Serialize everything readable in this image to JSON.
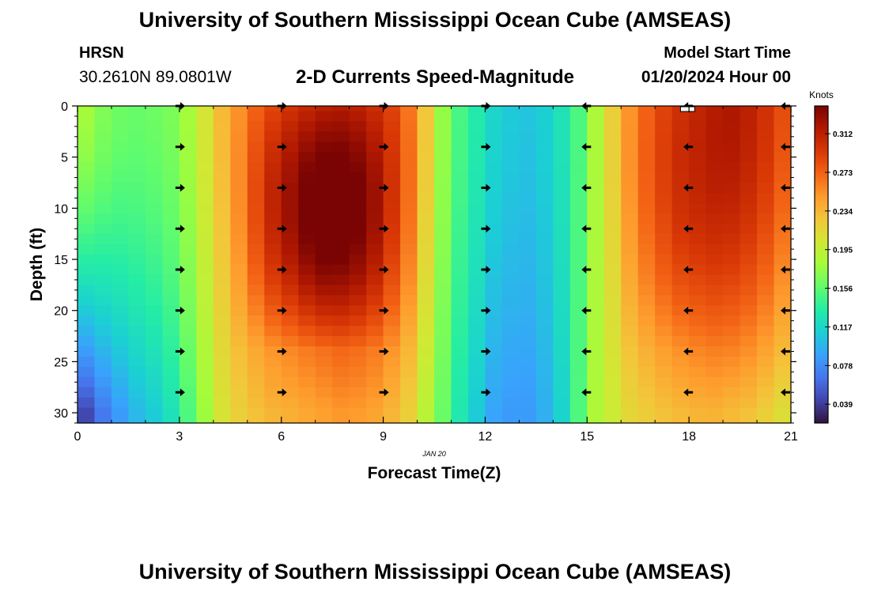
{
  "header": {
    "title_top": "University of Southern Mississippi Ocean Cube (AMSEAS)",
    "title_bottom": "University of Southern Mississippi Ocean Cube (AMSEAS)",
    "station": "HRSN",
    "coords": "30.2610N  89.0801W",
    "subtitle": "2-D Currents Speed-Magnitude",
    "start_label": "Model Start Time",
    "start_value": "01/20/2024 Hour 00"
  },
  "chart_data": {
    "type": "heatmap",
    "title": "2-D Currents Speed-Magnitude",
    "xlabel": "Forecast Time(Z)",
    "ylabel": "Depth (ft)",
    "date_label": "JAN 20",
    "xlim": [
      0,
      21
    ],
    "ylim": [
      0,
      31
    ],
    "x_ticks": [
      0,
      3,
      6,
      9,
      12,
      15,
      18,
      21
    ],
    "y_ticks": [
      0,
      5,
      10,
      15,
      20,
      25,
      30
    ],
    "colorbar": {
      "unit": "Knots",
      "min": 0.02,
      "max": 0.34,
      "ticks": [
        0.039,
        0.078,
        0.117,
        0.156,
        0.195,
        0.234,
        0.273,
        0.312
      ],
      "colors": [
        "#30123b",
        "#4145ab",
        "#4675ed",
        "#39a2fc",
        "#1bcfd4",
        "#24eca6",
        "#61fc6c",
        "#a4fc3b",
        "#d1e834",
        "#f3c63a",
        "#fe9b2d",
        "#f36315",
        "#d93806",
        "#b11901",
        "#7a0403"
      ]
    },
    "x": [
      0,
      0.5,
      1,
      1.5,
      2,
      2.5,
      3,
      3.5,
      4,
      4.5,
      5,
      5.5,
      6,
      6.5,
      7,
      7.5,
      8,
      8.5,
      9,
      9.5,
      10,
      10.5,
      11,
      11.5,
      12,
      12.5,
      13,
      13.5,
      14,
      14.5,
      15,
      15.5,
      16,
      16.5,
      17,
      17.5,
      18,
      18.5,
      19,
      19.5,
      20,
      20.5
    ],
    "depths": [
      0,
      1,
      2,
      3,
      4,
      5,
      6,
      7,
      8,
      9,
      10,
      11,
      12,
      13,
      14,
      15,
      16,
      17,
      18,
      19,
      20,
      21,
      22,
      23,
      24,
      25,
      26,
      27,
      28,
      29,
      30
    ],
    "speed_surface": [
      0.18,
      0.168,
      0.161,
      0.159,
      0.161,
      0.166,
      0.18,
      0.205,
      0.232,
      0.252,
      0.272,
      0.287,
      0.298,
      0.306,
      0.312,
      0.315,
      0.311,
      0.302,
      0.288,
      0.264,
      0.225,
      0.175,
      0.148,
      0.132,
      0.116,
      0.109,
      0.106,
      0.112,
      0.126,
      0.149,
      0.184,
      0.22,
      0.251,
      0.272,
      0.288,
      0.3,
      0.308,
      0.315,
      0.318,
      0.311,
      0.299,
      0.283
    ],
    "speed_bottom": [
      0.045,
      0.068,
      0.085,
      0.1,
      0.11,
      0.125,
      0.15,
      0.178,
      0.206,
      0.22,
      0.228,
      0.235,
      0.238,
      0.242,
      0.246,
      0.25,
      0.248,
      0.244,
      0.234,
      0.22,
      0.19,
      0.16,
      0.13,
      0.11,
      0.09,
      0.085,
      0.085,
      0.095,
      0.115,
      0.15,
      0.185,
      0.2,
      0.215,
      0.222,
      0.228,
      0.232,
      0.235,
      0.236,
      0.232,
      0.228,
      0.22,
      0.21
    ],
    "speed_mid_boost": [
      0,
      0,
      0,
      0,
      0,
      0,
      0,
      0,
      0,
      0.008,
      0.02,
      0.032,
      0.04,
      0.05,
      0.055,
      0.05,
      0.045,
      0.035,
      0.02,
      0.01,
      0,
      0,
      0,
      0,
      0,
      0,
      0,
      0,
      0,
      0,
      0,
      0,
      0.005,
      0.008,
      0.01,
      0.012,
      0.01,
      0.008,
      0.005,
      0.004,
      0.003,
      0
    ],
    "vectors": {
      "times": [
        3,
        6,
        9,
        12,
        15,
        18,
        21
      ],
      "depths": [
        0,
        4,
        8,
        12,
        16,
        20,
        24,
        28
      ],
      "direction": [
        "east",
        "east",
        "east",
        "east",
        "west",
        "west",
        "west"
      ]
    }
  }
}
